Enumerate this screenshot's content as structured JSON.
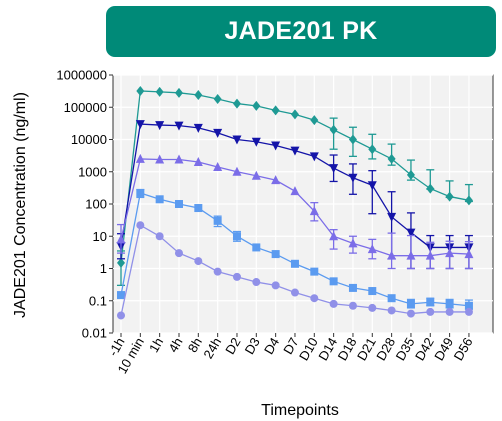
{
  "banner": {
    "title": "JADE201 PK"
  },
  "chart_data": {
    "type": "line",
    "title": "JADE201 PK",
    "xlabel": "Timepoints",
    "ylabel": "JADE201 Concentration (ng/ml)",
    "yscale": "log",
    "ylim": [
      0.01,
      1000000
    ],
    "yticks": [
      "1000000",
      "100000",
      "10000",
      "1000",
      "100",
      "10",
      "1",
      "0.1",
      "0.01"
    ],
    "categories": [
      "-1h",
      "10 min",
      "1h",
      "4h",
      "8h",
      "24h",
      "D2",
      "D3",
      "D4",
      "D7",
      "D10",
      "D14",
      "D18",
      "D21",
      "D28",
      "D35",
      "D42",
      "D49",
      "D56"
    ],
    "grid": true,
    "legend": "none",
    "series": [
      {
        "marker": "diamond",
        "color": "#1f9a94",
        "values": [
          1.5,
          320000,
          300000,
          280000,
          240000,
          180000,
          130000,
          110000,
          80000,
          60000,
          40000,
          20000,
          10000,
          5000,
          2500,
          800,
          300,
          170,
          130
        ],
        "err_low": [
          1.2,
          0,
          0,
          0,
          0,
          0,
          0,
          0,
          0,
          0,
          0,
          15000,
          7000,
          2500,
          900,
          250,
          10,
          10,
          10
        ],
        "err_high": [
          2,
          0,
          0,
          0,
          0,
          0,
          0,
          0,
          0,
          0,
          0,
          26000,
          14000,
          9500,
          4700,
          1500,
          850,
          350,
          270
        ]
      },
      {
        "marker": "triangle-down",
        "color": "#1414a8",
        "values": [
          5,
          30000,
          28000,
          27000,
          23000,
          16000,
          10000,
          8500,
          6500,
          4500,
          3000,
          1300,
          650,
          380,
          40,
          13,
          4.5,
          4.5,
          4.5
        ],
        "err_low": [
          3,
          0,
          0,
          0,
          0,
          0,
          0,
          0,
          0,
          0,
          0,
          800,
          450,
          330,
          38,
          12,
          3.5,
          3.5,
          3.5
        ],
        "err_high": [
          7,
          0,
          0,
          0,
          0,
          0,
          0,
          0,
          0,
          0,
          0,
          2000,
          1100,
          700,
          200,
          40,
          6,
          6,
          6
        ]
      },
      {
        "marker": "triangle",
        "color": "#7b6de8",
        "values": [
          8,
          2500,
          2400,
          2400,
          2000,
          1400,
          1000,
          750,
          550,
          250,
          60,
          10,
          6,
          4,
          2.5,
          2.5,
          2.5,
          3,
          2.8
        ],
        "err_low": [
          5,
          0,
          0,
          0,
          0,
          0,
          0,
          0,
          0,
          0,
          30,
          6,
          3,
          2,
          1.5,
          1.5,
          1.5,
          2,
          1.8
        ],
        "err_high": [
          15,
          0,
          0,
          0,
          0,
          0,
          0,
          0,
          0,
          0,
          50,
          6,
          4,
          4,
          10,
          8,
          4,
          4,
          4
        ]
      },
      {
        "marker": "square",
        "color": "#5b9bf0",
        "values": [
          0.15,
          220,
          140,
          100,
          75,
          30,
          10,
          4.5,
          2.8,
          1.4,
          0.8,
          0.4,
          0.25,
          0.2,
          0.12,
          0.08,
          0.09,
          0.08,
          0.07
        ],
        "err_low": [
          0,
          60,
          0,
          0,
          0,
          10,
          3,
          0,
          0,
          0,
          0,
          0,
          0,
          0,
          0,
          0.02,
          0.02,
          0.02,
          0.015
        ],
        "err_high": [
          0,
          60,
          0,
          0,
          0,
          12,
          4,
          0,
          0,
          0,
          0,
          0,
          0,
          0,
          0,
          0.03,
          0.03,
          0.03,
          0.035
        ]
      },
      {
        "marker": "circle",
        "color": "#9090e8",
        "values": [
          0.035,
          22,
          10,
          3,
          1.7,
          0.8,
          0.55,
          0.38,
          0.3,
          0.18,
          0.12,
          0.08,
          0.07,
          0.06,
          0.05,
          0.04,
          0.045,
          0.045,
          0.045
        ],
        "err_low": [
          0,
          0,
          0,
          0,
          0,
          0,
          0,
          0,
          0,
          0,
          0,
          0,
          0,
          0,
          0,
          0,
          0,
          0,
          0
        ],
        "err_high": [
          0,
          0,
          0,
          0,
          0,
          0,
          0,
          0,
          0,
          0,
          0,
          0,
          0,
          0,
          0,
          0,
          0,
          0,
          0
        ]
      }
    ]
  }
}
